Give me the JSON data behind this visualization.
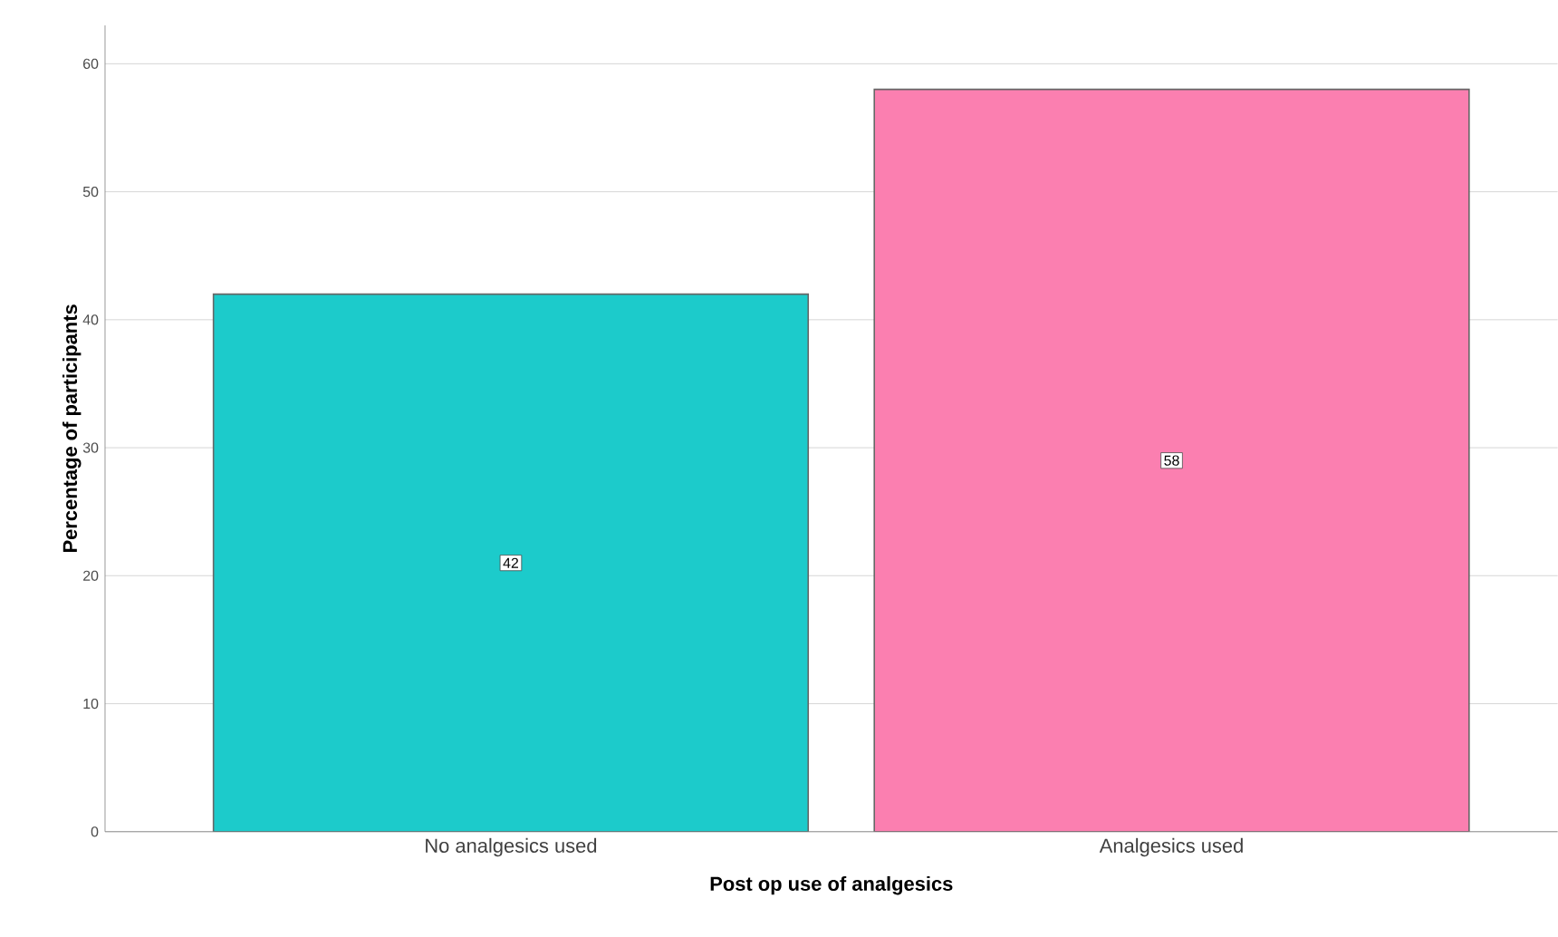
{
  "chart_data": {
    "type": "bar",
    "xlabel": "Post op use of analgesics",
    "ylabel": "Percentage of participants",
    "categories": [
      "No analgesics used",
      "Analgesics used"
    ],
    "values": [
      42,
      58
    ],
    "colors": [
      "#1ccbcb",
      "#fb7fb0"
    ],
    "ylim": [
      0,
      63
    ],
    "yticks": [
      0,
      10,
      20,
      30,
      40,
      50,
      60
    ],
    "grid": "y",
    "data_labels": true
  }
}
